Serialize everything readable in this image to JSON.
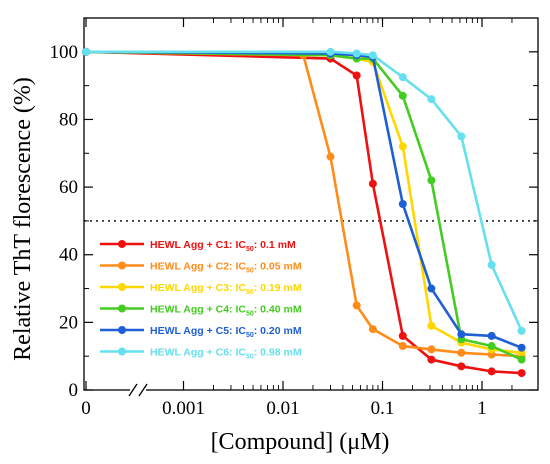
{
  "chart_data": {
    "type": "line",
    "ylabel": "Relative ThT florescence (%)",
    "xlabel": "[Compound] (μM)",
    "x_scale": "log",
    "x_axis_break": true,
    "xlim": [
      0.00014,
      2.8
    ],
    "ylim": [
      0,
      110
    ],
    "x_ticks": [
      {
        "value": 0,
        "label": "0"
      },
      {
        "value": 0.001,
        "label": "0.001"
      },
      {
        "value": 0.01,
        "label": "0.01"
      },
      {
        "value": 0.1,
        "label": "0.1"
      },
      {
        "value": 1,
        "label": "1"
      }
    ],
    "y_ticks": [
      0,
      20,
      40,
      60,
      80,
      100
    ],
    "reference_line": {
      "y": 50,
      "style": "dotted"
    },
    "legend_position": "left-bottom",
    "series": [
      {
        "name": "HEWL Agg + C1: IC50: 0.1 mM",
        "color": "#ee1111",
        "x": [
          0,
          0.03,
          0.055,
          0.08,
          0.16,
          0.31,
          0.62,
          1.25,
          2.5
        ],
        "y": [
          100,
          98,
          93,
          61,
          16,
          9,
          7,
          5.5,
          5
        ]
      },
      {
        "name": "HEWL Agg + C2: IC50: 0.05 mM",
        "color": "#ff8c1a",
        "x": [
          0,
          0.016,
          0.03,
          0.055,
          0.08,
          0.16,
          0.31,
          0.62,
          1.25,
          2.5
        ],
        "y": [
          100,
          99,
          69,
          25,
          18,
          13,
          12,
          11,
          10.5,
          10
        ]
      },
      {
        "name": "HEWL Agg + C3: IC50: 0.19 mM",
        "color": "#ffd700",
        "x": [
          0,
          0.03,
          0.055,
          0.08,
          0.16,
          0.31,
          0.62,
          1.25,
          2.5
        ],
        "y": [
          100,
          99,
          98,
          97,
          72,
          19,
          14,
          12,
          11
        ]
      },
      {
        "name": "HEWL Agg + C4: IC50: 0.40 mM",
        "color": "#44cc22",
        "x": [
          0,
          0.03,
          0.055,
          0.08,
          0.16,
          0.31,
          0.62,
          1.25,
          2.5
        ],
        "y": [
          100,
          99,
          98,
          98,
          87,
          62,
          15,
          13,
          9
        ]
      },
      {
        "name": "HEWL Agg + C5: IC50: 0.20 mM",
        "color": "#1f5fd6",
        "x": [
          0,
          0.03,
          0.055,
          0.08,
          0.16,
          0.31,
          0.62,
          1.25,
          2.5
        ],
        "y": [
          100,
          99.5,
          99,
          98.5,
          55,
          30,
          16.5,
          16,
          12.5
        ]
      },
      {
        "name": "HEWL Agg + C6: IC50: 0.98 mM",
        "color": "#66e0ee",
        "x": [
          0,
          0.03,
          0.055,
          0.08,
          0.16,
          0.31,
          0.62,
          1.25,
          2.5
        ],
        "y": [
          100,
          100,
          99.5,
          99,
          92.5,
          86,
          75,
          37,
          17.5
        ]
      }
    ],
    "legend_entries": [
      {
        "prefix": "HEWL Agg + C1: IC",
        "sub": "50",
        "suffix": ": 0.1 mM"
      },
      {
        "prefix": "HEWL Agg + C2: IC",
        "sub": "50",
        "suffix": ": 0.05 mM"
      },
      {
        "prefix": "HEWL Agg + C3: IC",
        "sub": "50",
        "suffix": ": 0.19 mM"
      },
      {
        "prefix": "HEWL Agg + C4: IC",
        "sub": "50",
        "suffix": ": 0.40 mM"
      },
      {
        "prefix": "HEWL Agg + C5: IC",
        "sub": "50",
        "suffix": ": 0.20 mM"
      },
      {
        "prefix": "HEWL Agg + C6: IC",
        "sub": "50",
        "suffix": ": 0.98 mM"
      }
    ]
  }
}
